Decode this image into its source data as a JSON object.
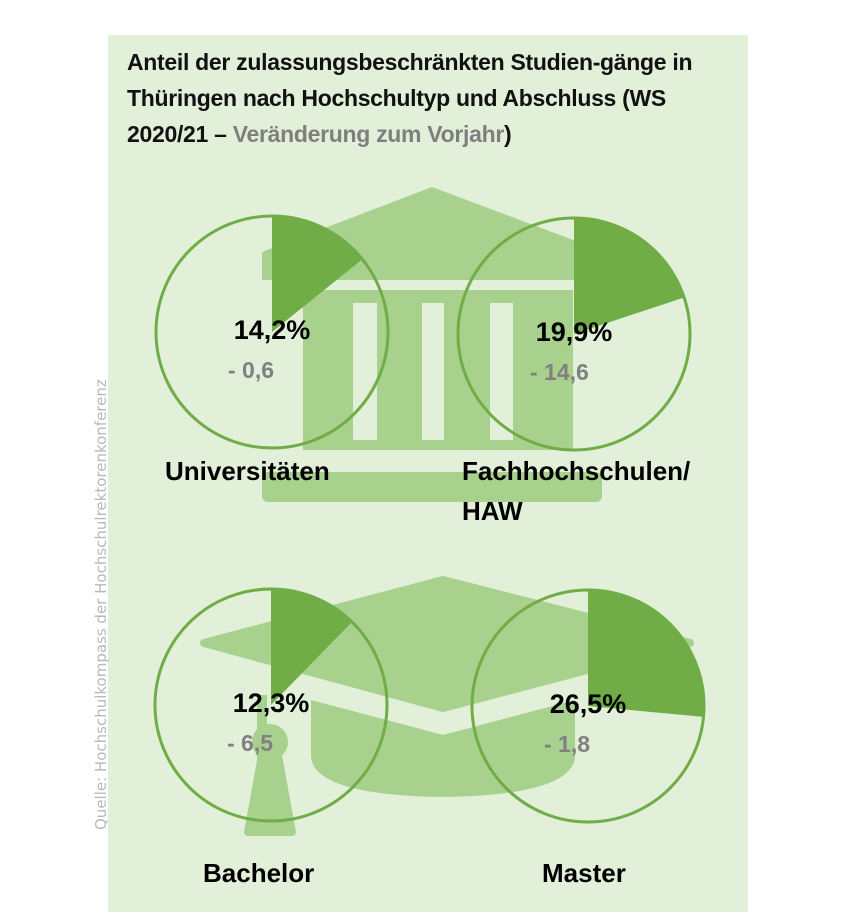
{
  "title": {
    "main": "Anteil der zulassungsbeschränkten Studien-gänge in Thüringen nach Hochschultyp und Abschluss (WS 2020/21 – ",
    "gray": "Veränderung zum Vorjahr",
    "close": ")"
  },
  "source": "Quelle: Hochschulkompass der Hochschulrektorenkonferenz",
  "colors": {
    "background": "#e2efd9",
    "wedge": "#70ad47",
    "icon": "#a9d18e",
    "delta": "#808080"
  },
  "chart_data": {
    "type": "pie",
    "title": "Anteil der zulassungsbeschränkten Studiengänge in Thüringen nach Hochschultyp und Abschluss (WS 2020/21 – Veränderung zum Vorjahr)",
    "unit": "%",
    "items": [
      {
        "label": "Universitäten",
        "value": 14.2,
        "value_label": "14,2%",
        "change": -0.6,
        "change_label": "- 0,6"
      },
      {
        "label": "Fachhochschulen/ HAW",
        "label_lines": [
          "Fachhochschulen/",
          "HAW"
        ],
        "value": 19.9,
        "value_label": "19,9%",
        "change": -14.6,
        "change_label": "- 14,6"
      },
      {
        "label": "Bachelor",
        "value": 12.3,
        "value_label": "12,3%",
        "change": -6.5,
        "change_label": "- 6,5"
      },
      {
        "label": "Master",
        "value": 26.5,
        "value_label": "26,5%",
        "change": -1.8,
        "change_label": "- 1,8"
      }
    ]
  }
}
